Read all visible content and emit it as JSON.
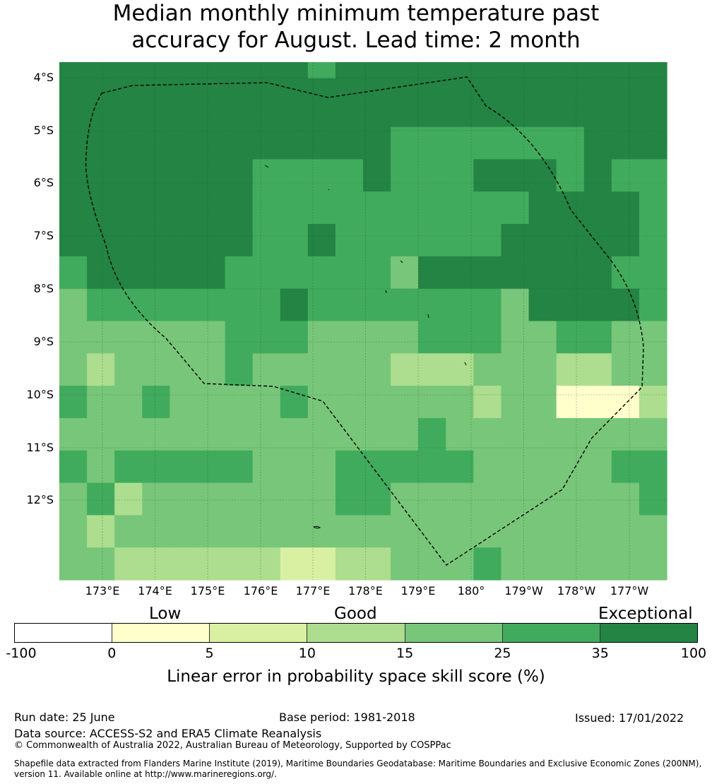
{
  "title_line1": "Median monthly minimum temperature past",
  "title_line2": "accuracy for August. Lead time: 2 month",
  "lat_labels": [
    "4°S",
    "5°S",
    "6°S",
    "7°S",
    "8°S",
    "9°S",
    "10°S",
    "11°S",
    "12°S"
  ],
  "lon_labels": [
    "173°E",
    "174°E",
    "175°E",
    "176°E",
    "177°E",
    "178°E",
    "179°E",
    "180°",
    "179°W",
    "178°W",
    "177°W"
  ],
  "categories": [
    "Low",
    "Good",
    "Exceptional"
  ],
  "colorbar": {
    "ticks": [
      "-100",
      "0",
      "5",
      "10",
      "15",
      "25",
      "35",
      "100"
    ],
    "colors": [
      "#ffffff",
      "#ffffcc",
      "#d9f0a3",
      "#addd8e",
      "#78c679",
      "#41ab5d",
      "#238443"
    ],
    "label": "Linear error in probability space skill score (%)"
  },
  "footer": {
    "run_date": "Run date: 25 June",
    "base_period": "Base period: 1981-2018",
    "issued": "Issued: 17/01/2022",
    "data_source": "Data source: ACCESS-S2 and ERA5 Climate Reanalysis",
    "copyright": "© Commonwealth of Australia 2022, Australian Bureau of Meteorology, Supported by COSPPac",
    "shapefile_line1": "Shapefile data extracted from Flanders Marine Institute (2019), Maritime Boundaries Geodatabase: Maritime Boundaries and Exclusive Economic Zones (200NM),",
    "shapefile_line2": "version 11. Available online at http://www.marineregions.org/."
  },
  "grid_legend": {
    "0": "#ffffcc",
    "1": "#d9f0a3",
    "2": "#addd8e",
    "3": "#78c679",
    "4": "#41ab5d",
    "5": "#238443"
  },
  "grid": [
    "5555555554555555555555",
    "5555555555555555555555",
    "5555555555555555555555",
    "5555555555555555555555",
    "5555555555554444444555",
    "5555555555554444444555",
    "5555555444454445554544",
    "5555555444454445554544",
    "5555555444444444455554",
    "5555555444444444455554",
    "5555555445444444555554",
    "5555555445444444555554",
    "4555554444443555555544",
    "4555554444443555555544",
    "3444444454444444355554",
    "3444444454444444355554",
    "3333334443333444334433",
    "3333334443333444334433",
    "3233334333332223332233",
    "3233334333332223332233",
    "4334333343333332330002",
    "4334333343333332330002",
    "3333333333333433333333",
    "3333333333333433333333",
    "4344444333444443333344",
    "4344444333444443333344",
    "3423333333443333333334",
    "3423333333443333333334",
    "3233333333333333333333",
    "3233333333333333333333",
    "3322222211223334333333",
    "3322222211223334333333"
  ]
}
